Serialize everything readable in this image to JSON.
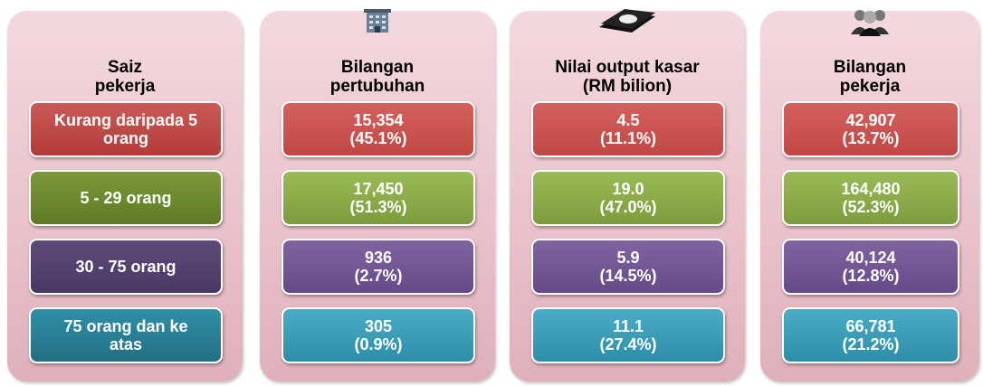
{
  "columns": [
    {
      "header": [
        "Saiz",
        "pekerja"
      ],
      "cells": [
        [
          "Kurang daripada 5",
          "orang"
        ],
        [
          "5 - 29 orang"
        ],
        [
          "30 - 75 orang"
        ],
        [
          "75 orang dan ke",
          "atas"
        ]
      ]
    },
    {
      "header": [
        "Bilangan",
        "pertubuhan"
      ],
      "cells": [
        [
          "15,354",
          "(45.1%)"
        ],
        [
          "17,450",
          "(51.3%)"
        ],
        [
          "936",
          "(2.7%)"
        ],
        [
          "305",
          "(0.9%)"
        ]
      ]
    },
    {
      "header": [
        "Nilai output kasar",
        "(RM bilion)"
      ],
      "cells": [
        [
          "4.5",
          "(11.1%)"
        ],
        [
          "19.0",
          "(47.0%)"
        ],
        [
          "5.9",
          "(14.5%)"
        ],
        [
          "11.1",
          "(27.4%)"
        ]
      ]
    },
    {
      "header": [
        "Bilangan",
        "pekerja"
      ],
      "cells": [
        [
          "42,907",
          "(13.7%)"
        ],
        [
          "164,480",
          "(52.3%)"
        ],
        [
          "40,124",
          "(12.8%)"
        ],
        [
          "66,781",
          "(21.2%)"
        ]
      ]
    }
  ]
}
